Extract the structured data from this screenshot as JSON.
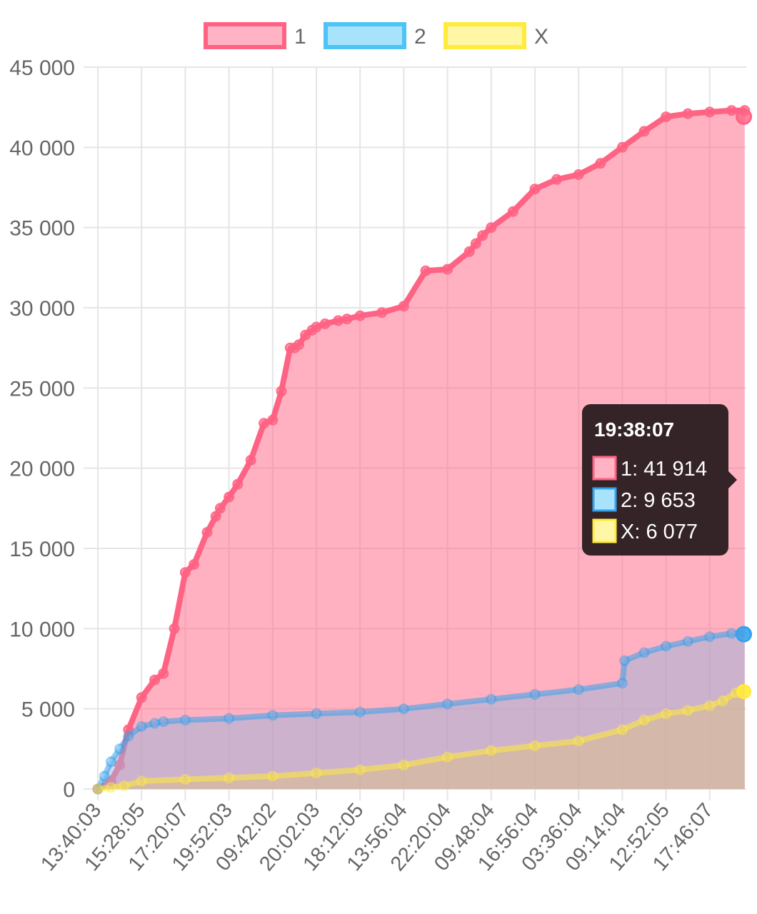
{
  "chart_data": {
    "type": "area",
    "ylim": [
      0,
      45000
    ],
    "y_ticks": [
      0,
      5000,
      10000,
      15000,
      20000,
      25000,
      30000,
      35000,
      40000,
      45000
    ],
    "y_tick_labels": [
      "0",
      "5 000",
      "10 000",
      "15 000",
      "20 000",
      "25 000",
      "30 000",
      "35 000",
      "40 000",
      "45 000"
    ],
    "x_tick_labels": [
      "13:40:03",
      "15:28:05",
      "17:20:07",
      "19:52:03",
      "09:42:02",
      "20:02:03",
      "18:12:05",
      "13:56:04",
      "22:20:04",
      "09:48:04",
      "16:56:04",
      "03:36:04",
      "09:14:04",
      "12:52:05",
      "17:46:07"
    ],
    "grid": true,
    "legend_position": "top-center",
    "series": [
      {
        "name": "1",
        "border_color": "#ff6384",
        "fill_color": "#ff6384",
        "x": [
          0,
          0.3,
          0.5,
          0.7,
          1.0,
          1.3,
          1.5,
          1.75,
          2.0,
          2.2,
          2.5,
          2.7,
          2.8,
          3.0,
          3.2,
          3.5,
          3.8,
          4.0,
          4.2,
          4.4,
          4.5,
          4.6,
          4.75,
          4.9,
          5.0,
          5.2,
          5.5,
          5.7,
          6.0,
          6.5,
          7.0,
          7.5,
          8.0,
          8.5,
          8.65,
          8.8,
          9.0,
          9.5,
          10.0,
          10.5,
          11.0,
          11.5,
          12.0,
          12.5,
          13.0,
          13.5,
          14.0,
          14.5,
          14.8
        ],
        "values": [
          0,
          500,
          1500,
          3700,
          5700,
          6800,
          7200,
          10000,
          13500,
          14000,
          16000,
          17000,
          17500,
          18200,
          19000,
          20500,
          22800,
          23000,
          24800,
          27500,
          27500,
          27700,
          28300,
          28600,
          28800,
          29000,
          29200,
          29300,
          29500,
          29700,
          30100,
          32300,
          32400,
          33500,
          34000,
          34500,
          35000,
          36000,
          37400,
          38000,
          38300,
          39000,
          40000,
          41000,
          41900,
          42100,
          42200,
          42300,
          42300
        ],
        "tooltip_value": "41 914"
      },
      {
        "name": "2",
        "border_color": "#36a2eb",
        "fill_color": "#9bb4dc",
        "x": [
          0,
          0.15,
          0.3,
          0.5,
          0.7,
          1.0,
          1.3,
          1.5,
          2.0,
          3.0,
          4.0,
          5.0,
          6.0,
          7.0,
          8.0,
          9.0,
          10.0,
          11.0,
          12.0,
          12.05,
          12.5,
          13.0,
          13.5,
          14.0,
          14.5,
          14.8
        ],
        "values": [
          0,
          800,
          1700,
          2500,
          3300,
          3900,
          4100,
          4200,
          4300,
          4400,
          4600,
          4700,
          4800,
          5000,
          5300,
          5600,
          5900,
          6200,
          6600,
          8000,
          8500,
          8900,
          9200,
          9500,
          9700,
          9700
        ],
        "tooltip_value": "9 653"
      },
      {
        "name": "X",
        "border_color": "#ffeb3b",
        "fill_color": "#dcc085",
        "x": [
          0,
          0.3,
          0.6,
          1.0,
          2.0,
          3.0,
          4.0,
          5.0,
          6.0,
          7.0,
          8.0,
          9.0,
          10.0,
          11.0,
          12.0,
          12.5,
          13.0,
          13.5,
          14.0,
          14.3,
          14.6,
          14.8
        ],
        "values": [
          0,
          100,
          200,
          500,
          600,
          700,
          800,
          1000,
          1200,
          1500,
          2000,
          2400,
          2700,
          3000,
          3700,
          4300,
          4700,
          4900,
          5200,
          5500,
          6000,
          6100
        ],
        "tooltip_value": "6 077"
      }
    ],
    "tooltip": {
      "title": "19:38:07",
      "items": [
        "1: 41 914",
        "2: 9 653",
        "X: 6 077"
      ],
      "anchor_x": 14.78,
      "anchor_y": 41914
    }
  }
}
